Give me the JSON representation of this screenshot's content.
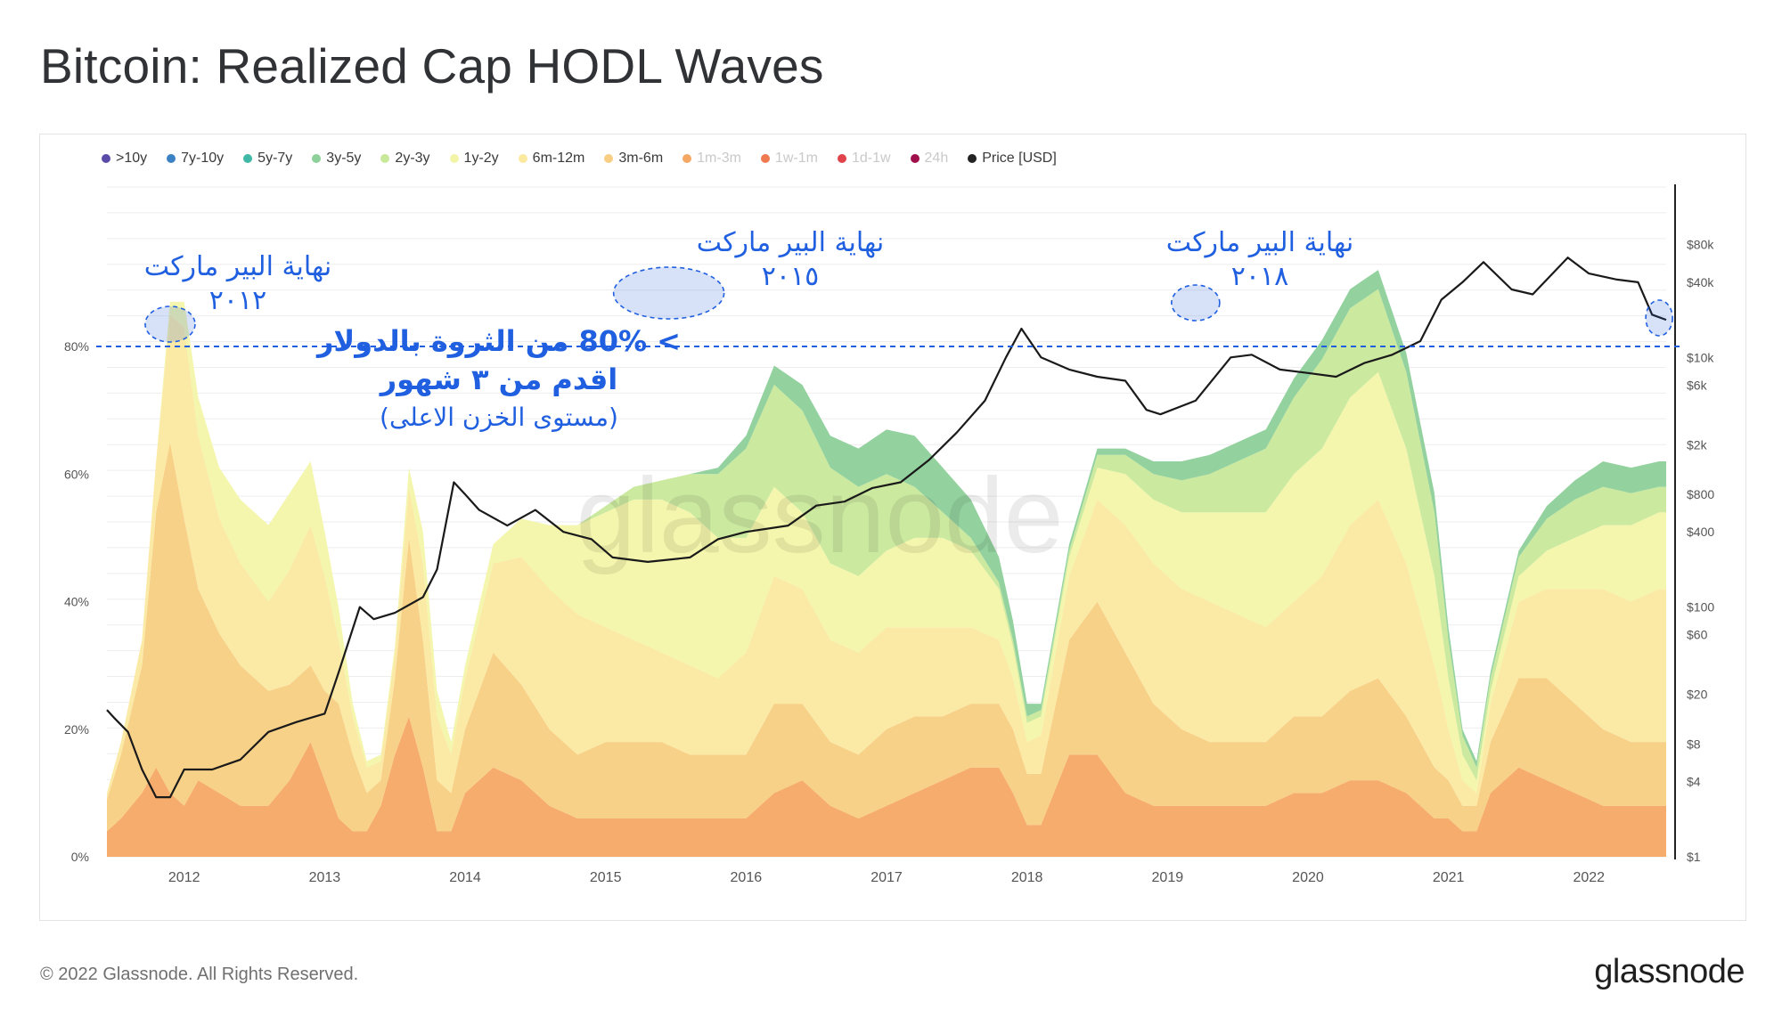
{
  "title": "Bitcoin: Realized Cap HODL Waves",
  "footer": {
    "copyright": "© 2022 Glassnode. All Rights Reserved.",
    "logo": "glassnode"
  },
  "watermark": "glassnode",
  "legend": [
    {
      "label": ">10y",
      "color": "#5b4ba8",
      "muted": false
    },
    {
      "label": "7y-10y",
      "color": "#3b82c4",
      "muted": false
    },
    {
      "label": "5y-7y",
      "color": "#3fb8a6",
      "muted": false
    },
    {
      "label": "3y-5y",
      "color": "#8dd09a",
      "muted": false
    },
    {
      "label": "2y-3y",
      "color": "#c8e89a",
      "muted": false
    },
    {
      "label": "1y-2y",
      "color": "#f2f5a8",
      "muted": false
    },
    {
      "label": "6m-12m",
      "color": "#fbe9a0",
      "muted": false
    },
    {
      "label": "3m-6m",
      "color": "#f8cf82",
      "muted": false
    },
    {
      "label": "1m-3m",
      "color": "#f5a864",
      "muted": true
    },
    {
      "label": "1w-1m",
      "color": "#ef7a50",
      "muted": true
    },
    {
      "label": "1d-1w",
      "color": "#e0434c",
      "muted": true
    },
    {
      "label": "24h",
      "color": "#9e0f4c",
      "muted": true
    },
    {
      "label": "Price [USD]",
      "color": "#222222",
      "muted": false
    }
  ],
  "annotations": {
    "bear_2012": [
      "نهاية البير ماركت",
      "٢٠١٢"
    ],
    "bear_2015": [
      "نهاية البير ماركت",
      "٢٠١٥"
    ],
    "bear_2018": [
      "نهاية البير ماركت",
      "٢٠١٨"
    ],
    "main_line1": "> 80% من الثروة بالدولار",
    "main_line2": "اقدم من ٣ شهور",
    "main_line3": "(مستوى الخزن الاعلى)"
  },
  "colors": {
    "annotation_blue": "#1f5fe0",
    "price_line": "#1a1a1a",
    "grid": "#eeeeee"
  },
  "chart_data": {
    "type": "area",
    "stacking": "percent",
    "x_ticks": [
      "2012",
      "2013",
      "2014",
      "2015",
      "2016",
      "2017",
      "2018",
      "2019",
      "2020",
      "2021",
      "2022"
    ],
    "y_ticks": [
      "0%",
      "20%",
      "40%",
      "60%",
      "80%"
    ],
    "y_right_ticks": [
      "$1",
      "$4",
      "$8",
      "$20",
      "$60",
      "$100",
      "$400",
      "$800",
      "$2k",
      "$6k",
      "$10k",
      "$40k",
      "$80k"
    ],
    "y_right_scale": "log",
    "reference_line": 80,
    "x": [
      2011.45,
      2011.55,
      2011.7,
      2011.8,
      2011.9,
      2012.0,
      2012.1,
      2012.25,
      2012.4,
      2012.6,
      2012.75,
      2012.9,
      2013.0,
      2013.1,
      2013.2,
      2013.3,
      2013.4,
      2013.5,
      2013.6,
      2013.7,
      2013.8,
      2013.9,
      2014.0,
      2014.2,
      2014.4,
      2014.6,
      2014.8,
      2015.0,
      2015.2,
      2015.4,
      2015.6,
      2015.8,
      2016.0,
      2016.2,
      2016.4,
      2016.6,
      2016.8,
      2017.0,
      2017.2,
      2017.4,
      2017.6,
      2017.8,
      2017.9,
      2018.0,
      2018.1,
      2018.3,
      2018.5,
      2018.7,
      2018.9,
      2019.1,
      2019.3,
      2019.5,
      2019.7,
      2019.9,
      2020.1,
      2020.3,
      2020.5,
      2020.7,
      2020.9,
      2021.0,
      2021.1,
      2021.2,
      2021.3,
      2021.5,
      2021.7,
      2021.9,
      2022.1,
      2022.3,
      2022.5,
      2022.55
    ],
    "series": [
      {
        "name": "3y-5y",
        "values": [
          0,
          0,
          0,
          0,
          0,
          0,
          0,
          0,
          0,
          0,
          0,
          0,
          0,
          0,
          0,
          0,
          0,
          0,
          0,
          0,
          0,
          0,
          0,
          0,
          0,
          0,
          0,
          0,
          0,
          0,
          0,
          1,
          2,
          3,
          4,
          5,
          6,
          7,
          8,
          7,
          6,
          4,
          3,
          2,
          1,
          1,
          1,
          1,
          2,
          3,
          3,
          3,
          3,
          3,
          3,
          3,
          3,
          3,
          3,
          2,
          1,
          1,
          1,
          1,
          2,
          3,
          4,
          4,
          4,
          4
        ]
      },
      {
        "name": "2y-3y",
        "values": [
          0,
          0,
          0,
          0,
          0,
          0,
          0,
          0,
          0,
          0,
          0,
          0,
          0,
          0,
          0,
          0,
          0,
          0,
          0,
          0,
          0,
          0,
          0,
          0,
          0,
          0,
          0,
          1,
          2,
          3,
          6,
          10,
          14,
          16,
          16,
          15,
          14,
          12,
          8,
          4,
          2,
          1,
          1,
          1,
          1,
          1,
          2,
          3,
          4,
          5,
          6,
          8,
          10,
          12,
          14,
          14,
          13,
          12,
          10,
          6,
          3,
          2,
          2,
          3,
          5,
          6,
          6,
          5,
          4,
          4
        ]
      },
      {
        "name": "1y-2y",
        "values": [
          0,
          0,
          0,
          0,
          2,
          4,
          6,
          8,
          10,
          12,
          12,
          10,
          7,
          5,
          2,
          1,
          1,
          1,
          3,
          5,
          4,
          2,
          2,
          3,
          6,
          10,
          14,
          18,
          22,
          24,
          24,
          22,
          18,
          14,
          12,
          12,
          12,
          12,
          14,
          14,
          12,
          8,
          5,
          3,
          3,
          3,
          5,
          8,
          10,
          12,
          14,
          16,
          18,
          20,
          20,
          20,
          20,
          18,
          14,
          8,
          4,
          2,
          2,
          4,
          6,
          8,
          10,
          12,
          12,
          12
        ]
      },
      {
        "name": "6m-12m",
        "values": [
          1,
          2,
          4,
          8,
          20,
          30,
          24,
          18,
          16,
          14,
          18,
          22,
          18,
          10,
          6,
          4,
          3,
          4,
          8,
          12,
          10,
          6,
          8,
          14,
          20,
          22,
          22,
          18,
          16,
          14,
          14,
          12,
          16,
          20,
          18,
          16,
          16,
          16,
          14,
          14,
          12,
          10,
          8,
          5,
          6,
          10,
          16,
          20,
          22,
          22,
          22,
          20,
          18,
          18,
          22,
          26,
          28,
          24,
          16,
          8,
          4,
          2,
          6,
          12,
          14,
          18,
          22,
          22,
          24,
          24
        ]
      },
      {
        "name": "3m-6m",
        "values": [
          5,
          10,
          20,
          40,
          55,
          45,
          30,
          25,
          22,
          18,
          15,
          12,
          14,
          18,
          12,
          6,
          4,
          12,
          28,
          20,
          8,
          6,
          10,
          18,
          15,
          12,
          10,
          12,
          12,
          12,
          10,
          10,
          10,
          14,
          12,
          10,
          10,
          12,
          12,
          10,
          10,
          10,
          10,
          8,
          8,
          18,
          24,
          22,
          16,
          12,
          10,
          10,
          10,
          12,
          12,
          14,
          16,
          12,
          8,
          6,
          4,
          4,
          8,
          14,
          16,
          14,
          12,
          10,
          10,
          10
        ]
      },
      {
        "name": "1m-3m",
        "values": [
          4,
          6,
          10,
          14,
          10,
          8,
          12,
          10,
          8,
          8,
          12,
          18,
          12,
          6,
          4,
          4,
          8,
          16,
          22,
          14,
          4,
          4,
          10,
          14,
          12,
          8,
          6,
          6,
          6,
          6,
          6,
          6,
          6,
          10,
          12,
          8,
          6,
          8,
          10,
          12,
          14,
          14,
          10,
          5,
          5,
          16,
          16,
          10,
          8,
          8,
          8,
          8,
          8,
          10,
          10,
          12,
          12,
          10,
          6,
          6,
          4,
          4,
          10,
          14,
          12,
          10,
          8,
          8,
          8,
          8
        ]
      }
    ],
    "price_series": {
      "name": "Price [USD]",
      "x": [
        2011.45,
        2011.5,
        2011.6,
        2011.7,
        2011.8,
        2011.9,
        2012.0,
        2012.2,
        2012.4,
        2012.6,
        2012.8,
        2013.0,
        2013.1,
        2013.25,
        2013.35,
        2013.5,
        2013.7,
        2013.8,
        2013.92,
        2014.0,
        2014.1,
        2014.3,
        2014.5,
        2014.7,
        2014.9,
        2015.05,
        2015.3,
        2015.6,
        2015.8,
        2016.0,
        2016.3,
        2016.5,
        2016.7,
        2016.9,
        2017.1,
        2017.3,
        2017.5,
        2017.7,
        2017.85,
        2017.96,
        2018.1,
        2018.3,
        2018.5,
        2018.7,
        2018.85,
        2018.95,
        2019.2,
        2019.45,
        2019.6,
        2019.8,
        2020.0,
        2020.2,
        2020.4,
        2020.6,
        2020.8,
        2020.95,
        2021.1,
        2021.25,
        2021.45,
        2021.6,
        2021.85,
        2022.0,
        2022.2,
        2022.35,
        2022.45,
        2022.55
      ],
      "values": [
        15,
        13,
        10,
        5,
        3,
        3,
        5,
        5,
        6,
        10,
        12,
        14,
        30,
        100,
        80,
        90,
        120,
        200,
        1000,
        800,
        600,
        450,
        600,
        400,
        350,
        250,
        230,
        250,
        350,
        400,
        450,
        650,
        700,
        900,
        1000,
        1500,
        2500,
        4500,
        10000,
        17000,
        10000,
        8000,
        7000,
        6500,
        3800,
        3500,
        4500,
        10000,
        10500,
        8000,
        7500,
        7000,
        9000,
        10500,
        13500,
        29000,
        40000,
        58000,
        35000,
        32000,
        63000,
        47000,
        42000,
        40000,
        22000,
        20000
      ]
    }
  }
}
